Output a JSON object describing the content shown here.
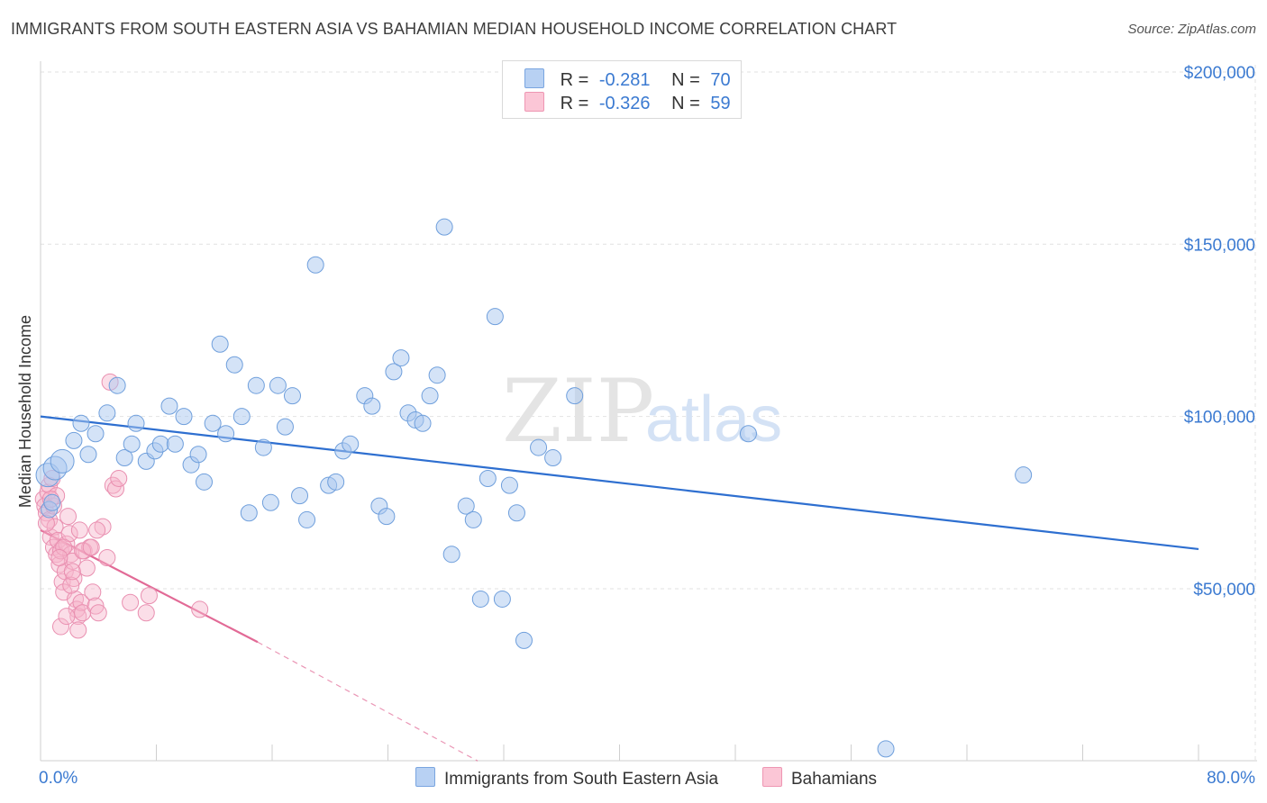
{
  "header": {
    "title": "IMMIGRANTS FROM SOUTH EASTERN ASIA VS BAHAMIAN MEDIAN HOUSEHOLD INCOME CORRELATION CHART",
    "source": "Source: ZipAtlas.com"
  },
  "watermark": {
    "zip": "ZIP",
    "atlas": "atlas"
  },
  "legend": {
    "rows": [
      {
        "r_label": "R =",
        "r_value": "-0.281",
        "n_label": "N =",
        "n_value": "70"
      },
      {
        "r_label": "R =",
        "r_value": "-0.326",
        "n_label": "N =",
        "n_value": "59"
      }
    ]
  },
  "colors": {
    "blue": "#3b7ad1",
    "blue_fill": "#a9c8f0",
    "blue_line": "#2e6fd0",
    "pink": "#e26a96",
    "pink_fill": "#f7b6cb",
    "grid": "#e2e2e2",
    "axis_text": "#3b7ad1"
  },
  "chart_data": {
    "type": "scatter",
    "title": "IMMIGRANTS FROM SOUTH EASTERN ASIA VS BAHAMIAN MEDIAN HOUSEHOLD INCOME CORRELATION CHART",
    "xlabel": "",
    "ylabel": "Median Household Income",
    "xlim": [
      0,
      80
    ],
    "ylim": [
      0,
      210000
    ],
    "x_tick_labels": [
      "0.0%",
      "80.0%"
    ],
    "y_ticks": [
      50000,
      100000,
      150000,
      200000
    ],
    "y_tick_labels": [
      "$50,000",
      "$100,000",
      "$150,000",
      "$200,000"
    ],
    "grid": true,
    "legend_position": "top-center",
    "series": [
      {
        "name": "Immigrants from South Eastern Asia",
        "color": "#3b7ad1",
        "R": -0.281,
        "N": 70,
        "trend": {
          "x": [
            0,
            80
          ],
          "y": [
            100000,
            61500
          ]
        },
        "points": [
          [
            0.5,
            83000
          ],
          [
            0.6,
            73000
          ],
          [
            1.0,
            85000
          ],
          [
            1.5,
            87000
          ],
          [
            2.3,
            93000
          ],
          [
            2.8,
            98000
          ],
          [
            3.3,
            89000
          ],
          [
            3.8,
            95000
          ],
          [
            4.6,
            101000
          ],
          [
            5.3,
            109000
          ],
          [
            5.8,
            88000
          ],
          [
            6.3,
            92000
          ],
          [
            6.6,
            98000
          ],
          [
            7.3,
            87000
          ],
          [
            7.9,
            90000
          ],
          [
            8.3,
            92000
          ],
          [
            8.9,
            103000
          ],
          [
            9.3,
            92000
          ],
          [
            9.9,
            100000
          ],
          [
            10.4,
            86000
          ],
          [
            10.9,
            89000
          ],
          [
            11.3,
            81000
          ],
          [
            11.9,
            98000
          ],
          [
            12.4,
            121000
          ],
          [
            12.8,
            95000
          ],
          [
            13.4,
            115000
          ],
          [
            13.9,
            100000
          ],
          [
            14.4,
            72000
          ],
          [
            14.9,
            109000
          ],
          [
            15.4,
            91000
          ],
          [
            15.9,
            75000
          ],
          [
            16.4,
            109000
          ],
          [
            16.9,
            97000
          ],
          [
            17.4,
            106000
          ],
          [
            17.9,
            77000
          ],
          [
            18.4,
            70000
          ],
          [
            19.0,
            144000
          ],
          [
            19.9,
            80000
          ],
          [
            20.4,
            81000
          ],
          [
            20.9,
            90000
          ],
          [
            21.4,
            92000
          ],
          [
            22.4,
            106000
          ],
          [
            22.9,
            103000
          ],
          [
            23.4,
            74000
          ],
          [
            23.9,
            71000
          ],
          [
            24.4,
            113000
          ],
          [
            24.9,
            117000
          ],
          [
            25.4,
            101000
          ],
          [
            25.9,
            99000
          ],
          [
            26.4,
            98000
          ],
          [
            26.9,
            106000
          ],
          [
            27.4,
            112000
          ],
          [
            27.9,
            155000
          ],
          [
            28.4,
            60000
          ],
          [
            29.4,
            74000
          ],
          [
            29.9,
            70000
          ],
          [
            30.4,
            47000
          ],
          [
            30.9,
            82000
          ],
          [
            31.4,
            129000
          ],
          [
            31.9,
            47000
          ],
          [
            32.4,
            80000
          ],
          [
            32.9,
            72000
          ],
          [
            33.4,
            35000
          ],
          [
            34.4,
            91000
          ],
          [
            35.4,
            88000
          ],
          [
            36.9,
            106000
          ],
          [
            48.9,
            95000
          ],
          [
            58.4,
            3500
          ],
          [
            67.9,
            83000
          ],
          [
            0.8,
            75000
          ]
        ]
      },
      {
        "name": "Bahamians",
        "color": "#e26a96",
        "R": -0.326,
        "N": 59,
        "trend": {
          "x": [
            0,
            15
          ],
          "y": [
            67000,
            34500
          ]
        },
        "trend_extension": {
          "x": [
            15,
            30.2
          ],
          "y": [
            34500,
            0
          ]
        },
        "points": [
          [
            0.2,
            76000
          ],
          [
            0.3,
            74000
          ],
          [
            0.4,
            72000
          ],
          [
            0.5,
            78000
          ],
          [
            0.6,
            70000
          ],
          [
            0.6,
            80000
          ],
          [
            0.7,
            65000
          ],
          [
            0.8,
            82000
          ],
          [
            0.9,
            62000
          ],
          [
            1.0,
            68000
          ],
          [
            1.1,
            60000
          ],
          [
            1.2,
            64000
          ],
          [
            1.3,
            57000
          ],
          [
            1.4,
            61000
          ],
          [
            1.5,
            52000
          ],
          [
            1.6,
            49000
          ],
          [
            1.7,
            55000
          ],
          [
            1.8,
            63000
          ],
          [
            1.9,
            71000
          ],
          [
            2.0,
            66000
          ],
          [
            2.1,
            60000
          ],
          [
            2.2,
            58000
          ],
          [
            2.3,
            53000
          ],
          [
            2.4,
            47000
          ],
          [
            2.5,
            44000
          ],
          [
            2.6,
            42000
          ],
          [
            2.7,
            67000
          ],
          [
            2.8,
            46000
          ],
          [
            2.9,
            43000
          ],
          [
            3.0,
            61000
          ],
          [
            3.2,
            56000
          ],
          [
            3.4,
            62000
          ],
          [
            3.6,
            49000
          ],
          [
            3.8,
            45000
          ],
          [
            4.0,
            43000
          ],
          [
            4.3,
            68000
          ],
          [
            4.6,
            59000
          ],
          [
            4.8,
            110000
          ],
          [
            5.0,
            80000
          ],
          [
            5.2,
            79000
          ],
          [
            5.4,
            82000
          ],
          [
            6.2,
            46000
          ],
          [
            7.3,
            43000
          ],
          [
            7.5,
            48000
          ],
          [
            11.0,
            44000
          ],
          [
            1.4,
            39000
          ],
          [
            2.6,
            38000
          ],
          [
            0.9,
            74000
          ],
          [
            1.1,
            77000
          ],
          [
            1.6,
            62000
          ],
          [
            2.1,
            51000
          ],
          [
            2.9,
            61000
          ],
          [
            3.5,
            62000
          ],
          [
            3.9,
            67000
          ],
          [
            1.3,
            59000
          ],
          [
            0.4,
            69000
          ],
          [
            0.7,
            76000
          ],
          [
            1.8,
            42000
          ],
          [
            2.2,
            55000
          ]
        ]
      }
    ]
  },
  "bottom_legend": {
    "items": [
      "Immigrants from South Eastern Asia",
      "Bahamians"
    ]
  },
  "x_axis": {
    "left_label": "0.0%",
    "right_label": "80.0%"
  },
  "y_axis": {
    "label": "Median Household Income"
  }
}
